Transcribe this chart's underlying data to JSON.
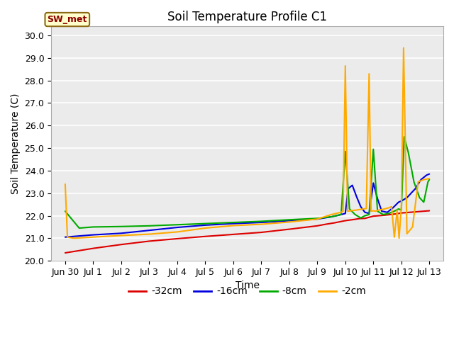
{
  "title": "Soil Temperature Profile C1",
  "xlabel": "Time",
  "ylabel": "Soil Temperature (C)",
  "ylim": [
    20.0,
    30.4
  ],
  "yticks": [
    20.0,
    21.0,
    22.0,
    23.0,
    24.0,
    25.0,
    26.0,
    27.0,
    28.0,
    29.0,
    30.0
  ],
  "annotation_text": "SW_met",
  "bg_color": "#ebebeb",
  "line_colors": {
    "-32cm": "#dd0000",
    "-16cm": "#0000dd",
    "-8cm": "#00aa00",
    "-2cm": "#ffaa00"
  },
  "x_labels": [
    "Jun 30",
    "Jul 1",
    "Jul 2",
    "Jul 3",
    "Jul 4",
    "Jul 5",
    "Jul 6",
    "Jul 7",
    "Jul 8",
    "Jul 9",
    "Jul 10",
    "Jul 11",
    "Jul 12",
    "Jul 13"
  ],
  "x_tick_positions": [
    0,
    1,
    2,
    3,
    4,
    5,
    6,
    7,
    8,
    9,
    10,
    11,
    12,
    13
  ],
  "series": {
    "-32cm": {
      "x": [
        0,
        1,
        2,
        3,
        4,
        5,
        6,
        7,
        8,
        9,
        9.3,
        9.6,
        10,
        10.3,
        10.5,
        10.7,
        11,
        11.2,
        11.4,
        11.6,
        11.8,
        12,
        12.2,
        12.4,
        12.6,
        12.8,
        13
      ],
      "y": [
        20.35,
        20.55,
        20.72,
        20.87,
        20.98,
        21.08,
        21.17,
        21.26,
        21.4,
        21.55,
        21.62,
        21.68,
        21.78,
        21.83,
        21.87,
        21.88,
        21.98,
        22.0,
        22.02,
        22.05,
        22.08,
        22.12,
        22.14,
        22.16,
        22.18,
        22.2,
        22.22
      ]
    },
    "-16cm": {
      "x": [
        0,
        0.5,
        1,
        2,
        3,
        4,
        5,
        6,
        7,
        8,
        9,
        9.5,
        9.85,
        10.0,
        10.1,
        10.25,
        10.4,
        10.55,
        10.7,
        10.85,
        11.0,
        11.15,
        11.3,
        11.5,
        11.7,
        11.9,
        12.0,
        12.2,
        12.5,
        12.7,
        12.9,
        13.0
      ],
      "y": [
        21.05,
        21.1,
        21.15,
        21.22,
        21.35,
        21.48,
        21.58,
        21.65,
        21.7,
        21.78,
        21.85,
        21.95,
        22.05,
        22.1,
        23.2,
        23.35,
        22.85,
        22.4,
        22.15,
        22.1,
        23.45,
        22.75,
        22.2,
        22.15,
        22.35,
        22.6,
        22.65,
        22.8,
        23.2,
        23.6,
        23.8,
        23.85
      ]
    },
    "-8cm": {
      "x": [
        0,
        0.5,
        1,
        2,
        3,
        4,
        5,
        6,
        7,
        8,
        9,
        9.5,
        9.85,
        10.0,
        10.15,
        10.35,
        10.55,
        10.7,
        10.85,
        11.0,
        11.15,
        11.35,
        11.55,
        11.75,
        11.9,
        12.0,
        12.1,
        12.25,
        12.45,
        12.65,
        12.8,
        12.95,
        13.0
      ],
      "y": [
        22.2,
        21.45,
        21.5,
        21.52,
        21.55,
        21.6,
        21.65,
        21.7,
        21.75,
        21.82,
        21.88,
        21.95,
        22.05,
        24.85,
        22.3,
        22.05,
        21.9,
        22.0,
        22.05,
        24.95,
        22.2,
        22.05,
        22.1,
        22.2,
        22.3,
        22.25,
        25.5,
        24.8,
        23.5,
        22.8,
        22.6,
        23.5,
        23.6
      ]
    },
    "-2cm": {
      "x": [
        0,
        0.08,
        0.3,
        1,
        2,
        3,
        4,
        5,
        6,
        7,
        8,
        9,
        9.5,
        9.85,
        9.92,
        10.0,
        10.08,
        10.2,
        10.4,
        10.55,
        10.65,
        10.75,
        10.85,
        10.92,
        11.0,
        11.08,
        11.2,
        11.4,
        11.55,
        11.65,
        11.75,
        11.85,
        11.92,
        12.0,
        12.08,
        12.2,
        12.4,
        12.6,
        12.8,
        13.0
      ],
      "y": [
        23.4,
        21.05,
        21.0,
        21.05,
        21.12,
        21.18,
        21.28,
        21.45,
        21.56,
        21.62,
        21.72,
        21.85,
        22.05,
        22.15,
        22.2,
        28.65,
        22.2,
        22.22,
        22.25,
        22.28,
        22.3,
        22.32,
        28.3,
        22.2,
        22.22,
        22.2,
        22.25,
        22.3,
        22.35,
        22.4,
        21.05,
        22.25,
        21.0,
        22.4,
        29.45,
        21.2,
        21.5,
        23.5,
        23.6,
        23.65
      ]
    }
  }
}
